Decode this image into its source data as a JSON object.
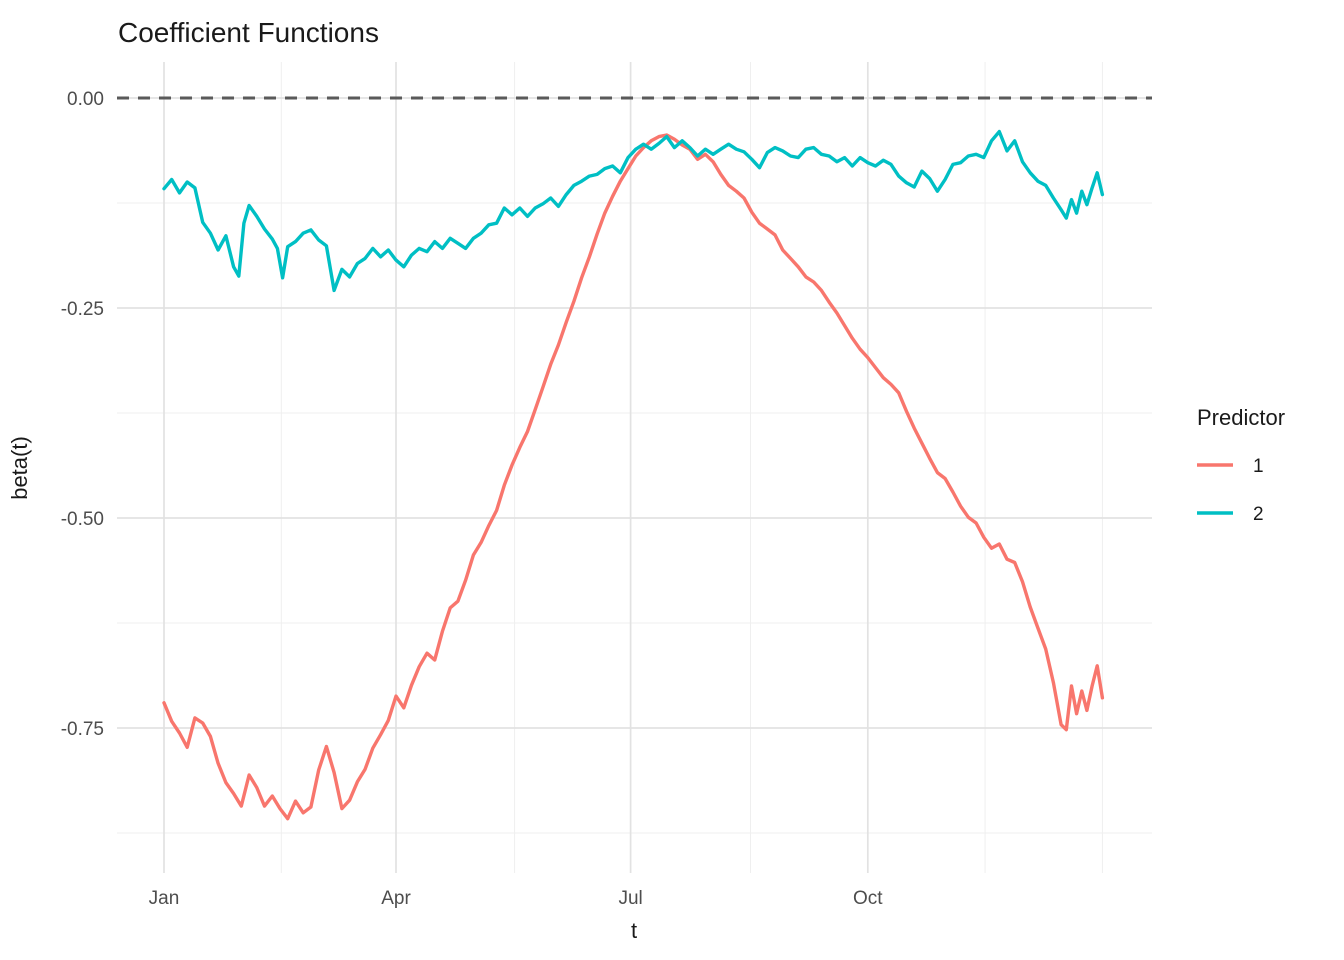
{
  "figure": {
    "title": "Coefficient Functions"
  },
  "chart_data": {
    "type": "line",
    "title": "Coefficient Functions",
    "xlabel": "t",
    "ylabel": "beta(t)",
    "grid": "on",
    "x_axis": {
      "unit": "day-of-year",
      "range_days": [
        0,
        364
      ],
      "major_ticks": [
        {
          "label": "Jan",
          "day": 0
        },
        {
          "label": "Apr",
          "day": 90
        },
        {
          "label": "Jul",
          "day": 181
        },
        {
          "label": "Oct",
          "day": 273
        }
      ],
      "minor_gridline_days": [
        45.5,
        136,
        227.5,
        318.5,
        364
      ]
    },
    "y_axis": {
      "ticks": [
        {
          "label": "0.00",
          "value": 0
        },
        {
          "label": "-0.25",
          "value": -0.25
        },
        {
          "label": "-0.50",
          "value": -0.5
        },
        {
          "label": "-0.75",
          "value": -0.75
        }
      ],
      "minor_gridline_values": [
        -0.125,
        -0.375,
        -0.625,
        -0.875
      ],
      "limits": [
        -0.92,
        0.04
      ]
    },
    "reference_line": {
      "value": 0,
      "style": "dashed",
      "color": "#5a5a5a"
    },
    "legend": {
      "title": "Predictor",
      "position": "right",
      "entries": [
        {
          "label": "1",
          "color": "#F8766D"
        },
        {
          "label": "2",
          "color": "#00BFC4"
        }
      ]
    },
    "series": [
      {
        "name": "1",
        "color": "#F8766D",
        "points": [
          [
            0,
            -0.72
          ],
          [
            3,
            -0.742
          ],
          [
            6,
            -0.756
          ],
          [
            9,
            -0.773
          ],
          [
            12,
            -0.738
          ],
          [
            15,
            -0.744
          ],
          [
            18,
            -0.76
          ],
          [
            21,
            -0.792
          ],
          [
            24,
            -0.815
          ],
          [
            27,
            -0.828
          ],
          [
            30,
            -0.843
          ],
          [
            33,
            -0.806
          ],
          [
            36,
            -0.821
          ],
          [
            39,
            -0.843
          ],
          [
            42,
            -0.831
          ],
          [
            45,
            -0.846
          ],
          [
            48,
            -0.858
          ],
          [
            51,
            -0.837
          ],
          [
            54,
            -0.851
          ],
          [
            57,
            -0.844
          ],
          [
            60,
            -0.8
          ],
          [
            63,
            -0.772
          ],
          [
            66,
            -0.803
          ],
          [
            69,
            -0.846
          ],
          [
            72,
            -0.836
          ],
          [
            75,
            -0.814
          ],
          [
            78,
            -0.799
          ],
          [
            81,
            -0.774
          ],
          [
            84,
            -0.758
          ],
          [
            87,
            -0.741
          ],
          [
            90,
            -0.712
          ],
          [
            93,
            -0.726
          ],
          [
            96,
            -0.699
          ],
          [
            99,
            -0.677
          ],
          [
            102,
            -0.661
          ],
          [
            105,
            -0.669
          ],
          [
            108,
            -0.635
          ],
          [
            111,
            -0.607
          ],
          [
            114,
            -0.599
          ],
          [
            117,
            -0.574
          ],
          [
            120,
            -0.544
          ],
          [
            123,
            -0.529
          ],
          [
            126,
            -0.509
          ],
          [
            129,
            -0.491
          ],
          [
            132,
            -0.461
          ],
          [
            135,
            -0.437
          ],
          [
            138,
            -0.416
          ],
          [
            141,
            -0.397
          ],
          [
            144,
            -0.371
          ],
          [
            147,
            -0.344
          ],
          [
            150,
            -0.317
          ],
          [
            153,
            -0.294
          ],
          [
            156,
            -0.267
          ],
          [
            159,
            -0.242
          ],
          [
            162,
            -0.214
          ],
          [
            165,
            -0.189
          ],
          [
            168,
            -0.162
          ],
          [
            171,
            -0.137
          ],
          [
            174,
            -0.117
          ],
          [
            177,
            -0.099
          ],
          [
            180,
            -0.084
          ],
          [
            183,
            -0.069
          ],
          [
            186,
            -0.059
          ],
          [
            189,
            -0.051
          ],
          [
            192,
            -0.046
          ],
          [
            195,
            -0.044
          ],
          [
            198,
            -0.049
          ],
          [
            201,
            -0.056
          ],
          [
            204,
            -0.061
          ],
          [
            207,
            -0.073
          ],
          [
            210,
            -0.067
          ],
          [
            213,
            -0.076
          ],
          [
            216,
            -0.091
          ],
          [
            219,
            -0.104
          ],
          [
            222,
            -0.111
          ],
          [
            225,
            -0.119
          ],
          [
            228,
            -0.136
          ],
          [
            231,
            -0.149
          ],
          [
            234,
            -0.156
          ],
          [
            237,
            -0.163
          ],
          [
            240,
            -0.181
          ],
          [
            243,
            -0.191
          ],
          [
            246,
            -0.201
          ],
          [
            249,
            -0.213
          ],
          [
            252,
            -0.219
          ],
          [
            255,
            -0.229
          ],
          [
            258,
            -0.243
          ],
          [
            261,
            -0.256
          ],
          [
            264,
            -0.271
          ],
          [
            267,
            -0.286
          ],
          [
            270,
            -0.299
          ],
          [
            273,
            -0.309
          ],
          [
            276,
            -0.321
          ],
          [
            279,
            -0.333
          ],
          [
            282,
            -0.341
          ],
          [
            285,
            -0.351
          ],
          [
            288,
            -0.373
          ],
          [
            291,
            -0.393
          ],
          [
            294,
            -0.411
          ],
          [
            297,
            -0.429
          ],
          [
            300,
            -0.446
          ],
          [
            303,
            -0.453
          ],
          [
            306,
            -0.469
          ],
          [
            309,
            -0.486
          ],
          [
            312,
            -0.499
          ],
          [
            315,
            -0.506
          ],
          [
            318,
            -0.523
          ],
          [
            321,
            -0.536
          ],
          [
            324,
            -0.531
          ],
          [
            327,
            -0.549
          ],
          [
            330,
            -0.553
          ],
          [
            333,
            -0.576
          ],
          [
            336,
            -0.606
          ],
          [
            339,
            -0.631
          ],
          [
            342,
            -0.656
          ],
          [
            345,
            -0.696
          ],
          [
            348,
            -0.746
          ],
          [
            350,
            -0.752
          ],
          [
            352,
            -0.7
          ],
          [
            354,
            -0.733
          ],
          [
            356,
            -0.706
          ],
          [
            358,
            -0.729
          ],
          [
            360,
            -0.7
          ],
          [
            362,
            -0.676
          ],
          [
            364,
            -0.714
          ]
        ]
      },
      {
        "name": "2",
        "color": "#00BFC4",
        "points": [
          [
            0,
            -0.108
          ],
          [
            3,
            -0.097
          ],
          [
            6,
            -0.113
          ],
          [
            9,
            -0.1
          ],
          [
            12,
            -0.107
          ],
          [
            15,
            -0.148
          ],
          [
            18,
            -0.161
          ],
          [
            21,
            -0.181
          ],
          [
            24,
            -0.164
          ],
          [
            27,
            -0.201
          ],
          [
            29,
            -0.212
          ],
          [
            31,
            -0.149
          ],
          [
            33,
            -0.128
          ],
          [
            36,
            -0.141
          ],
          [
            39,
            -0.156
          ],
          [
            42,
            -0.168
          ],
          [
            44,
            -0.179
          ],
          [
            46,
            -0.214
          ],
          [
            48,
            -0.177
          ],
          [
            51,
            -0.171
          ],
          [
            54,
            -0.161
          ],
          [
            57,
            -0.157
          ],
          [
            60,
            -0.169
          ],
          [
            63,
            -0.176
          ],
          [
            66,
            -0.229
          ],
          [
            69,
            -0.204
          ],
          [
            72,
            -0.213
          ],
          [
            75,
            -0.197
          ],
          [
            78,
            -0.191
          ],
          [
            81,
            -0.179
          ],
          [
            84,
            -0.189
          ],
          [
            87,
            -0.181
          ],
          [
            90,
            -0.193
          ],
          [
            93,
            -0.201
          ],
          [
            96,
            -0.187
          ],
          [
            99,
            -0.179
          ],
          [
            102,
            -0.183
          ],
          [
            105,
            -0.171
          ],
          [
            108,
            -0.179
          ],
          [
            111,
            -0.167
          ],
          [
            114,
            -0.173
          ],
          [
            117,
            -0.179
          ],
          [
            120,
            -0.167
          ],
          [
            123,
            -0.161
          ],
          [
            126,
            -0.151
          ],
          [
            129,
            -0.149
          ],
          [
            132,
            -0.131
          ],
          [
            135,
            -0.139
          ],
          [
            138,
            -0.131
          ],
          [
            141,
            -0.141
          ],
          [
            144,
            -0.131
          ],
          [
            147,
            -0.126
          ],
          [
            150,
            -0.119
          ],
          [
            153,
            -0.129
          ],
          [
            156,
            -0.115
          ],
          [
            159,
            -0.104
          ],
          [
            162,
            -0.099
          ],
          [
            165,
            -0.093
          ],
          [
            168,
            -0.091
          ],
          [
            171,
            -0.084
          ],
          [
            174,
            -0.081
          ],
          [
            177,
            -0.089
          ],
          [
            180,
            -0.071
          ],
          [
            183,
            -0.061
          ],
          [
            186,
            -0.055
          ],
          [
            189,
            -0.061
          ],
          [
            192,
            -0.054
          ],
          [
            195,
            -0.046
          ],
          [
            198,
            -0.059
          ],
          [
            201,
            -0.051
          ],
          [
            204,
            -0.059
          ],
          [
            207,
            -0.069
          ],
          [
            210,
            -0.061
          ],
          [
            213,
            -0.067
          ],
          [
            216,
            -0.061
          ],
          [
            219,
            -0.055
          ],
          [
            222,
            -0.061
          ],
          [
            225,
            -0.064
          ],
          [
            228,
            -0.073
          ],
          [
            231,
            -0.083
          ],
          [
            234,
            -0.065
          ],
          [
            237,
            -0.059
          ],
          [
            240,
            -0.063
          ],
          [
            243,
            -0.069
          ],
          [
            246,
            -0.071
          ],
          [
            249,
            -0.061
          ],
          [
            252,
            -0.059
          ],
          [
            255,
            -0.067
          ],
          [
            258,
            -0.069
          ],
          [
            261,
            -0.076
          ],
          [
            264,
            -0.071
          ],
          [
            267,
            -0.081
          ],
          [
            270,
            -0.071
          ],
          [
            273,
            -0.077
          ],
          [
            276,
            -0.081
          ],
          [
            279,
            -0.074
          ],
          [
            282,
            -0.079
          ],
          [
            285,
            -0.093
          ],
          [
            288,
            -0.101
          ],
          [
            291,
            -0.106
          ],
          [
            294,
            -0.087
          ],
          [
            297,
            -0.096
          ],
          [
            300,
            -0.111
          ],
          [
            303,
            -0.097
          ],
          [
            306,
            -0.079
          ],
          [
            309,
            -0.077
          ],
          [
            312,
            -0.069
          ],
          [
            315,
            -0.067
          ],
          [
            318,
            -0.071
          ],
          [
            321,
            -0.051
          ],
          [
            324,
            -0.04
          ],
          [
            327,
            -0.063
          ],
          [
            330,
            -0.051
          ],
          [
            333,
            -0.076
          ],
          [
            336,
            -0.089
          ],
          [
            339,
            -0.099
          ],
          [
            342,
            -0.104
          ],
          [
            345,
            -0.119
          ],
          [
            348,
            -0.133
          ],
          [
            350,
            -0.143
          ],
          [
            352,
            -0.121
          ],
          [
            354,
            -0.137
          ],
          [
            356,
            -0.111
          ],
          [
            358,
            -0.127
          ],
          [
            360,
            -0.107
          ],
          [
            362,
            -0.089
          ],
          [
            364,
            -0.115
          ]
        ]
      }
    ]
  }
}
